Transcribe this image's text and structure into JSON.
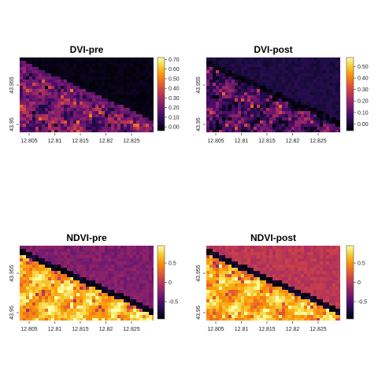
{
  "figure": {
    "colormap": "inferno",
    "colormap_stops": [
      "#000004",
      "#1b0c41",
      "#4a0c6b",
      "#781c6d",
      "#a52c60",
      "#cf4446",
      "#ed6925",
      "#fb9b06",
      "#f7d13d",
      "#fcffa4"
    ]
  },
  "chart_data": [
    {
      "type": "heatmap",
      "title": "DVI-pre",
      "x_ticks": [
        "12.805",
        "12.81",
        "12.815",
        "12.82",
        "12.825"
      ],
      "y_ticks": [
        "43.95",
        "43.955"
      ],
      "colorbar_ticks": [
        "0.00",
        "0.10",
        "0.20",
        "0.30",
        "0.40",
        "0.50",
        "0.60",
        "0.70"
      ],
      "colorbar_range": [
        -0.04,
        0.72
      ],
      "land_level": [
        0.2,
        0.45
      ],
      "sea_level": [
        0.01,
        0.05
      ],
      "coast_level": 0.3
    },
    {
      "type": "heatmap",
      "title": "DVI-post",
      "x_ticks": [
        "12.805",
        "12.81",
        "12.815",
        "12.82",
        "12.825"
      ],
      "y_ticks": [
        "43.95",
        "43.955"
      ],
      "colorbar_ticks": [
        "0.00",
        "0.10",
        "0.20",
        "0.30",
        "0.40",
        "0.50"
      ],
      "colorbar_range": [
        -0.06,
        0.58
      ],
      "land_level": [
        0.1,
        0.35
      ],
      "sea_level": [
        0.08,
        0.15
      ],
      "coast_level": 0.02
    },
    {
      "type": "heatmap",
      "title": "NDVI-pre",
      "x_ticks": [
        "12.805",
        "12.81",
        "12.815",
        "12.82",
        "12.825"
      ],
      "y_ticks": [
        "43.95",
        "43.955"
      ],
      "colorbar_ticks": [
        "0.5",
        "0",
        "-0.5"
      ],
      "colorbar_range": [
        -0.95,
        0.95
      ],
      "land_level": [
        0.75,
        0.92
      ],
      "sea_level": [
        0.3,
        0.4
      ],
      "coast_level": 0.05
    },
    {
      "type": "heatmap",
      "title": "NDVI-post",
      "x_ticks": [
        "12.805",
        "12.81",
        "12.815",
        "12.82",
        "12.825"
      ],
      "y_ticks": [
        "43.95",
        "43.955"
      ],
      "colorbar_ticks": [
        "0.5",
        "0",
        "-0.5"
      ],
      "colorbar_range": [
        -0.95,
        0.95
      ],
      "land_level": [
        0.72,
        0.9
      ],
      "sea_level": [
        0.45,
        0.55
      ],
      "coast_level": 0.05
    }
  ]
}
